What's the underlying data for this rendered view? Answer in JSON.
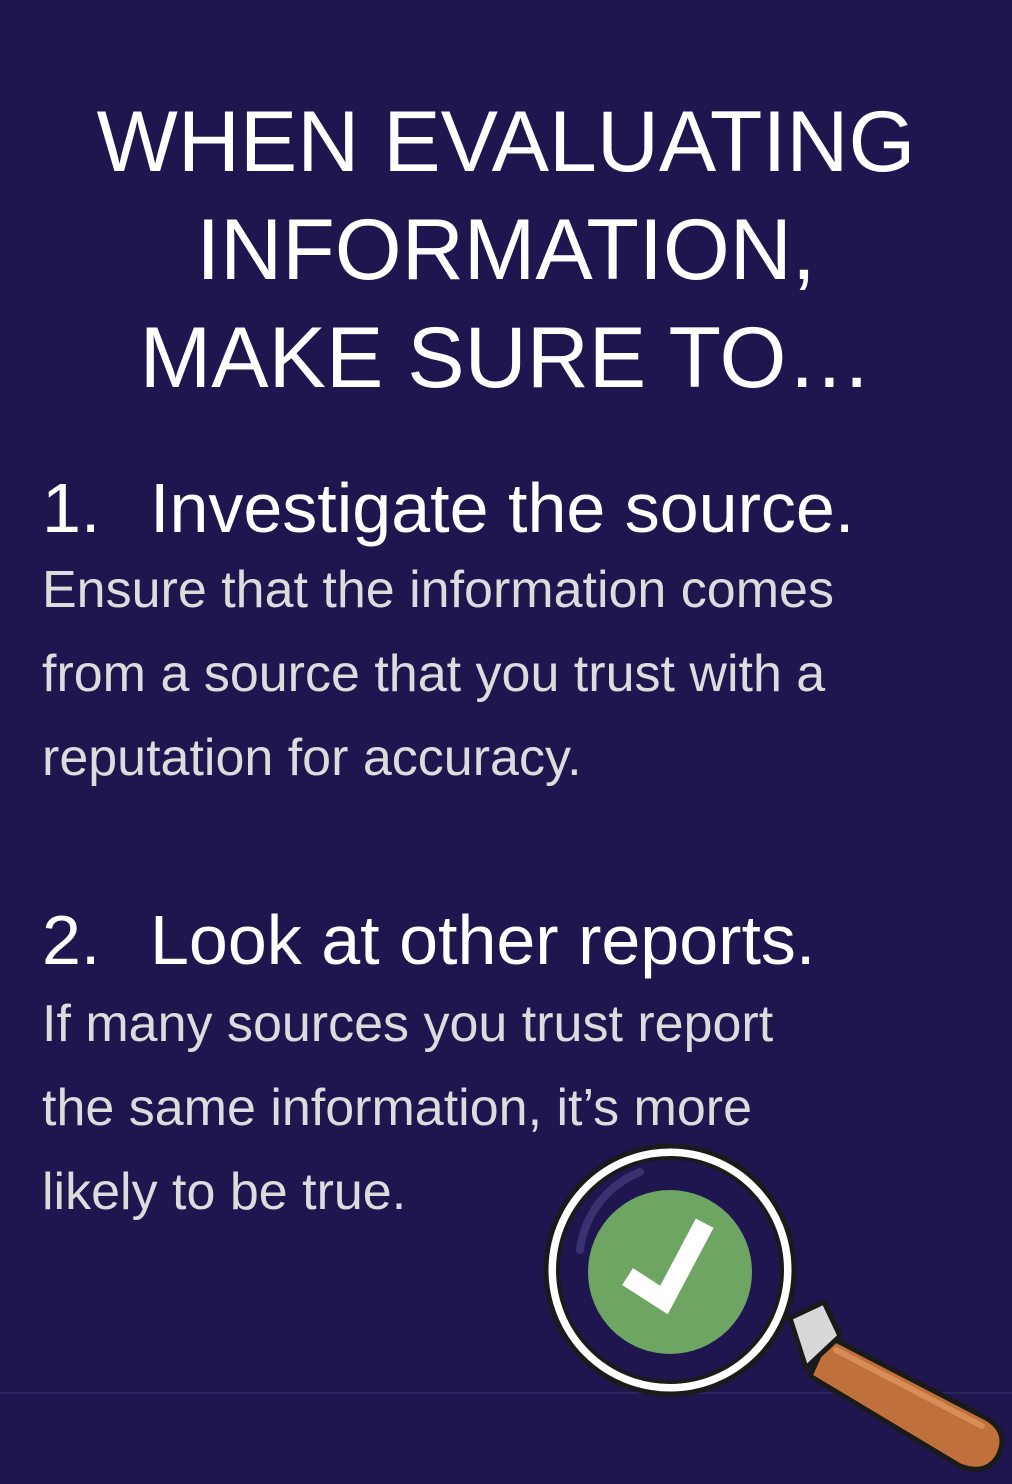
{
  "title": {
    "line1": "WHEN EVALUATING",
    "line2": "INFORMATION,",
    "line3": "MAKE SURE TO…"
  },
  "items": [
    {
      "number": "1.",
      "heading": "Investigate the source.",
      "body_lines": [
        "Ensure that the information comes",
        "from a source that you trust with a",
        "reputation for accuracy."
      ]
    },
    {
      "number": "2.",
      "heading": "Look at other reports.",
      "body_lines": [
        "If many sources you trust report",
        "the same information, it’s more",
        "likely to be true."
      ]
    }
  ],
  "graphic": {
    "icon": "magnifying-glass-checkmark-icon",
    "colors": {
      "background": "#1f1650",
      "check_circle": "#6fa562",
      "handle": "#c0703a",
      "ring": "#ffffff"
    }
  }
}
